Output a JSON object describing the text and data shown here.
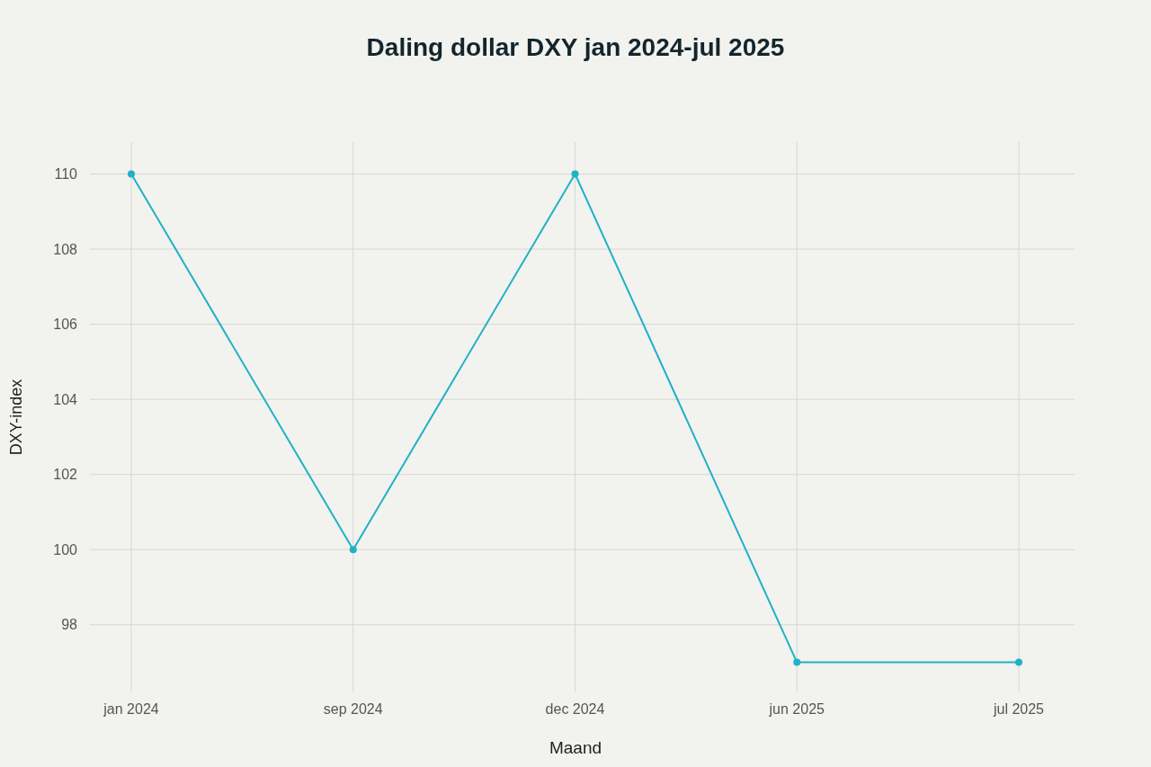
{
  "chart_data": {
    "type": "line",
    "title": "Daling dollar DXY jan 2024-jul 2025",
    "xlabel": "Maand",
    "ylabel": "DXY-index",
    "categories": [
      "jan 2024",
      "sep 2024",
      "dec 2024",
      "jun 2025",
      "jul 2025"
    ],
    "series": [
      {
        "color": "#1fb2c6",
        "values": [
          110,
          100,
          110,
          97,
          97
        ]
      }
    ],
    "ylim": [
      96.2,
      110.85
    ],
    "yticks": [
      98,
      100,
      102,
      104,
      106,
      108,
      110
    ],
    "grid": true,
    "marker": "circle",
    "line_style": "solid"
  }
}
